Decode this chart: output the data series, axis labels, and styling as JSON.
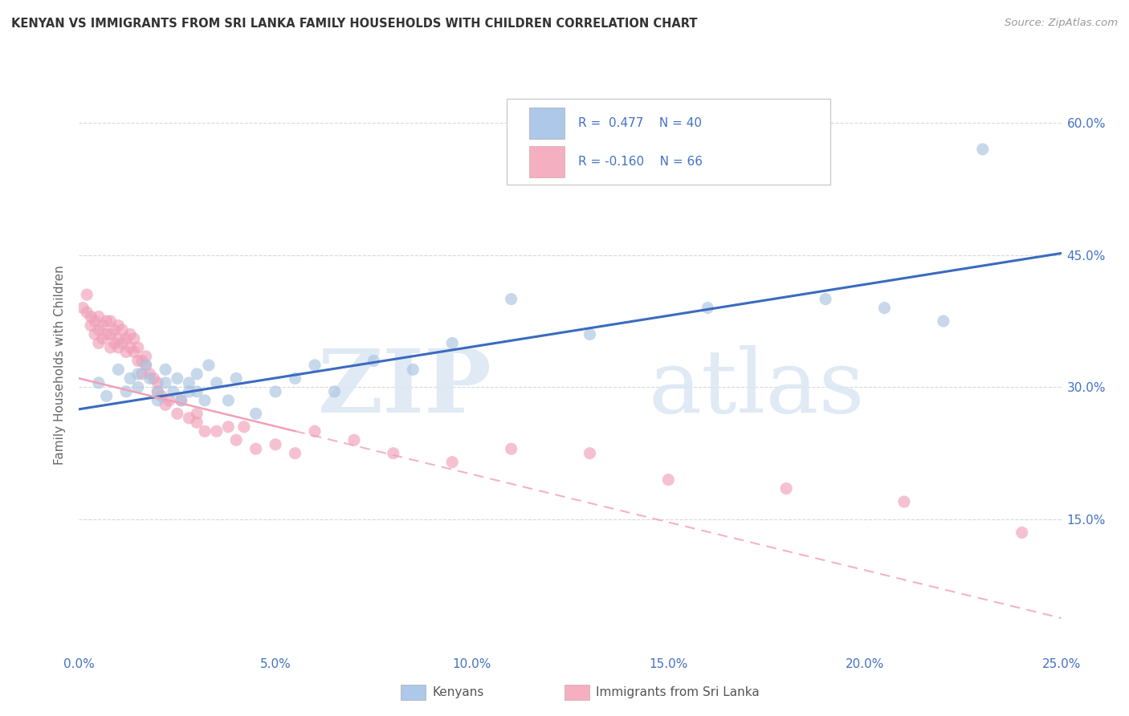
{
  "title": "KENYAN VS IMMIGRANTS FROM SRI LANKA FAMILY HOUSEHOLDS WITH CHILDREN CORRELATION CHART",
  "source": "Source: ZipAtlas.com",
  "ylabel": "Family Households with Children",
  "xmin": 0.0,
  "xmax": 0.25,
  "ymin": 0.0,
  "ymax": 0.65,
  "yticks": [
    0.15,
    0.3,
    0.45,
    0.6
  ],
  "ytick_labels": [
    "15.0%",
    "30.0%",
    "45.0%",
    "60.0%"
  ],
  "xticks": [
    0.0,
    0.05,
    0.1,
    0.15,
    0.2,
    0.25
  ],
  "xtick_labels": [
    "0.0%",
    "5.0%",
    "10.0%",
    "15.0%",
    "20.0%",
    "25.0%"
  ],
  "blue_R": 0.477,
  "blue_N": 40,
  "pink_R": -0.16,
  "pink_N": 66,
  "blue_legend_color": "#adc8e8",
  "pink_legend_color": "#f4afc0",
  "blue_line_color": "#3a6bbf",
  "pink_line_color": "#f0a0b8",
  "blue_scatter_color": "#aac4e0",
  "pink_scatter_color": "#f0a0b8",
  "legend_text_color": "#4472c4",
  "tick_color": "#4472c4",
  "ylabel_color": "#666666",
  "title_color": "#333333",
  "source_color": "#999999",
  "grid_color": "#d0d0d0",
  "watermark_color": "#dde8f4",
  "kenyans_x": [
    0.005,
    0.007,
    0.01,
    0.012,
    0.013,
    0.015,
    0.015,
    0.017,
    0.018,
    0.02,
    0.02,
    0.022,
    0.022,
    0.024,
    0.025,
    0.026,
    0.028,
    0.028,
    0.03,
    0.03,
    0.032,
    0.033,
    0.035,
    0.038,
    0.04,
    0.045,
    0.05,
    0.055,
    0.06,
    0.065,
    0.075,
    0.085,
    0.095,
    0.11,
    0.13,
    0.16,
    0.19,
    0.205,
    0.22,
    0.23
  ],
  "kenyans_y": [
    0.305,
    0.29,
    0.32,
    0.295,
    0.31,
    0.315,
    0.3,
    0.325,
    0.31,
    0.285,
    0.295,
    0.305,
    0.32,
    0.295,
    0.31,
    0.285,
    0.305,
    0.295,
    0.315,
    0.295,
    0.285,
    0.325,
    0.305,
    0.285,
    0.31,
    0.27,
    0.295,
    0.31,
    0.325,
    0.295,
    0.33,
    0.32,
    0.35,
    0.4,
    0.36,
    0.39,
    0.4,
    0.39,
    0.375,
    0.57
  ],
  "srilanka_x": [
    0.001,
    0.002,
    0.002,
    0.003,
    0.003,
    0.004,
    0.004,
    0.005,
    0.005,
    0.005,
    0.006,
    0.006,
    0.007,
    0.007,
    0.008,
    0.008,
    0.008,
    0.009,
    0.009,
    0.01,
    0.01,
    0.01,
    0.011,
    0.011,
    0.012,
    0.012,
    0.013,
    0.013,
    0.014,
    0.014,
    0.015,
    0.015,
    0.016,
    0.016,
    0.017,
    0.017,
    0.018,
    0.019,
    0.02,
    0.02,
    0.021,
    0.022,
    0.023,
    0.025,
    0.026,
    0.028,
    0.03,
    0.03,
    0.032,
    0.035,
    0.038,
    0.04,
    0.042,
    0.045,
    0.05,
    0.055,
    0.06,
    0.07,
    0.08,
    0.095,
    0.11,
    0.13,
    0.15,
    0.18,
    0.21,
    0.24
  ],
  "srilanka_y": [
    0.39,
    0.385,
    0.405,
    0.37,
    0.38,
    0.36,
    0.375,
    0.35,
    0.365,
    0.38,
    0.355,
    0.37,
    0.36,
    0.375,
    0.345,
    0.36,
    0.375,
    0.35,
    0.365,
    0.345,
    0.355,
    0.37,
    0.35,
    0.365,
    0.34,
    0.355,
    0.345,
    0.36,
    0.34,
    0.355,
    0.33,
    0.345,
    0.33,
    0.315,
    0.325,
    0.335,
    0.315,
    0.31,
    0.295,
    0.305,
    0.29,
    0.28,
    0.285,
    0.27,
    0.285,
    0.265,
    0.26,
    0.27,
    0.25,
    0.25,
    0.255,
    0.24,
    0.255,
    0.23,
    0.235,
    0.225,
    0.25,
    0.24,
    0.225,
    0.215,
    0.23,
    0.225,
    0.195,
    0.185,
    0.17,
    0.135
  ],
  "blue_line_x0": 0.0,
  "blue_line_y0": 0.275,
  "blue_line_x1": 0.25,
  "blue_line_y1": 0.452,
  "pink_line_x0": 0.0,
  "pink_line_y0": 0.31,
  "pink_line_x1": 0.25,
  "pink_line_y1": 0.038
}
